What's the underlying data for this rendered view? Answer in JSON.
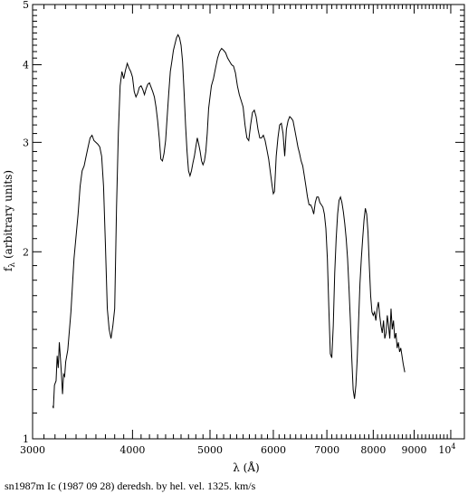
{
  "chart_data": {
    "type": "line",
    "x_scale": "log",
    "y_scale": "log",
    "xlim": [
      3000,
      10400
    ],
    "ylim": [
      1,
      5
    ],
    "xlabel": "λ (Å)",
    "ylabel": "f_λ (arbitrary units)",
    "ylabel_main": "f",
    "ylabel_sub": "λ",
    "ylabel_rest": " (arbitrary units)",
    "caption": "sn1987m Ic (1987 09 28) deredsh. by hel. vel.  1325. km/s",
    "x_ticks": [
      {
        "value": 3000,
        "label": "3000"
      },
      {
        "value": 4000,
        "label": "4000"
      },
      {
        "value": 5000,
        "label": "5000"
      },
      {
        "value": 6000,
        "label": "6000"
      },
      {
        "value": 7000,
        "label": "7000"
      },
      {
        "value": 8000,
        "label": "8000"
      },
      {
        "value": 9000,
        "label": "9000"
      }
    ],
    "x_tick_last": {
      "value": 10000,
      "base": "10",
      "exp": "4"
    },
    "x_minor_ticks": [
      3100,
      3200,
      3300,
      3400,
      3500,
      3600,
      3700,
      3800,
      3900,
      4100,
      4200,
      4300,
      4400,
      4500,
      4600,
      4700,
      4800,
      4900,
      5100,
      5200,
      5300,
      5400,
      5500,
      5600,
      5700,
      5800,
      5900,
      6100,
      6200,
      6300,
      6400,
      6500,
      6600,
      6700,
      6800,
      6900,
      7100,
      7200,
      7300,
      7400,
      7500,
      7600,
      7700,
      7800,
      7900,
      8100,
      8200,
      8300,
      8400,
      8500,
      8600,
      8700,
      8800,
      8900,
      9100,
      9200,
      9300,
      9400,
      9500,
      9600,
      9700,
      9800,
      9900
    ],
    "y_ticks": [
      {
        "value": 1,
        "label": "1"
      },
      {
        "value": 2,
        "label": "2"
      },
      {
        "value": 3,
        "label": "3"
      },
      {
        "value": 4,
        "label": "4"
      },
      {
        "value": 5,
        "label": "5"
      }
    ],
    "y_minor_ticks": [
      1.1,
      1.2,
      1.3,
      1.4,
      1.5,
      1.6,
      1.7,
      1.8,
      1.9,
      2.1,
      2.2,
      2.3,
      2.4,
      2.5,
      2.6,
      2.7,
      2.8,
      2.9,
      3.1,
      3.2,
      3.3,
      3.4,
      3.5,
      3.6,
      3.7,
      3.8,
      3.9,
      4.1,
      4.2,
      4.3,
      4.4,
      4.5,
      4.6,
      4.7,
      4.8,
      4.9
    ],
    "series": [
      {
        "points": [
          [
            3180,
            1.13
          ],
          [
            3185,
            1.12
          ],
          [
            3195,
            1.22
          ],
          [
            3210,
            1.24
          ],
          [
            3220,
            1.36
          ],
          [
            3230,
            1.3
          ],
          [
            3240,
            1.43
          ],
          [
            3250,
            1.35
          ],
          [
            3260,
            1.27
          ],
          [
            3270,
            1.18
          ],
          [
            3280,
            1.27
          ],
          [
            3290,
            1.26
          ],
          [
            3300,
            1.33
          ],
          [
            3320,
            1.39
          ],
          [
            3350,
            1.6
          ],
          [
            3380,
            1.95
          ],
          [
            3420,
            2.3
          ],
          [
            3440,
            2.55
          ],
          [
            3460,
            2.7
          ],
          [
            3480,
            2.75
          ],
          [
            3500,
            2.85
          ],
          [
            3520,
            2.95
          ],
          [
            3540,
            3.05
          ],
          [
            3560,
            3.08
          ],
          [
            3580,
            3.02
          ],
          [
            3600,
            3.0
          ],
          [
            3620,
            2.98
          ],
          [
            3640,
            2.95
          ],
          [
            3660,
            2.85
          ],
          [
            3680,
            2.55
          ],
          [
            3700,
            2.05
          ],
          [
            3720,
            1.62
          ],
          [
            3740,
            1.5
          ],
          [
            3760,
            1.45
          ],
          [
            3780,
            1.52
          ],
          [
            3800,
            1.62
          ],
          [
            3820,
            2.35
          ],
          [
            3840,
            3.1
          ],
          [
            3860,
            3.7
          ],
          [
            3880,
            3.9
          ],
          [
            3900,
            3.8
          ],
          [
            3920,
            3.92
          ],
          [
            3940,
            4.02
          ],
          [
            3960,
            3.95
          ],
          [
            3980,
            3.9
          ],
          [
            4000,
            3.82
          ],
          [
            4020,
            3.62
          ],
          [
            4040,
            3.55
          ],
          [
            4060,
            3.6
          ],
          [
            4080,
            3.68
          ],
          [
            4100,
            3.7
          ],
          [
            4120,
            3.65
          ],
          [
            4140,
            3.58
          ],
          [
            4160,
            3.66
          ],
          [
            4180,
            3.72
          ],
          [
            4200,
            3.74
          ],
          [
            4220,
            3.68
          ],
          [
            4240,
            3.62
          ],
          [
            4260,
            3.55
          ],
          [
            4280,
            3.42
          ],
          [
            4300,
            3.25
          ],
          [
            4320,
            3.05
          ],
          [
            4340,
            2.82
          ],
          [
            4360,
            2.8
          ],
          [
            4380,
            2.88
          ],
          [
            4400,
            3.02
          ],
          [
            4420,
            3.3
          ],
          [
            4440,
            3.6
          ],
          [
            4460,
            3.9
          ],
          [
            4480,
            4.05
          ],
          [
            4500,
            4.22
          ],
          [
            4520,
            4.32
          ],
          [
            4540,
            4.42
          ],
          [
            4560,
            4.47
          ],
          [
            4580,
            4.42
          ],
          [
            4600,
            4.3
          ],
          [
            4620,
            4.05
          ],
          [
            4640,
            3.62
          ],
          [
            4660,
            3.2
          ],
          [
            4680,
            2.9
          ],
          [
            4700,
            2.7
          ],
          [
            4720,
            2.65
          ],
          [
            4740,
            2.7
          ],
          [
            4760,
            2.78
          ],
          [
            4780,
            2.85
          ],
          [
            4800,
            2.95
          ],
          [
            4820,
            3.05
          ],
          [
            4840,
            2.98
          ],
          [
            4860,
            2.9
          ],
          [
            4880,
            2.8
          ],
          [
            4900,
            2.76
          ],
          [
            4920,
            2.8
          ],
          [
            4940,
            2.9
          ],
          [
            4960,
            3.1
          ],
          [
            4980,
            3.4
          ],
          [
            5000,
            3.55
          ],
          [
            5020,
            3.7
          ],
          [
            5050,
            3.8
          ],
          [
            5080,
            3.95
          ],
          [
            5110,
            4.1
          ],
          [
            5140,
            4.2
          ],
          [
            5170,
            4.25
          ],
          [
            5200,
            4.22
          ],
          [
            5230,
            4.18
          ],
          [
            5260,
            4.1
          ],
          [
            5290,
            4.05
          ],
          [
            5320,
            4.0
          ],
          [
            5350,
            3.98
          ],
          [
            5380,
            3.88
          ],
          [
            5410,
            3.7
          ],
          [
            5440,
            3.58
          ],
          [
            5470,
            3.5
          ],
          [
            5500,
            3.42
          ],
          [
            5530,
            3.2
          ],
          [
            5560,
            3.05
          ],
          [
            5590,
            3.02
          ],
          [
            5620,
            3.2
          ],
          [
            5650,
            3.35
          ],
          [
            5680,
            3.38
          ],
          [
            5710,
            3.3
          ],
          [
            5740,
            3.15
          ],
          [
            5770,
            3.05
          ],
          [
            5800,
            3.05
          ],
          [
            5830,
            3.08
          ],
          [
            5860,
            3.02
          ],
          [
            5890,
            2.92
          ],
          [
            5920,
            2.82
          ],
          [
            5950,
            2.68
          ],
          [
            5980,
            2.55
          ],
          [
            6000,
            2.48
          ],
          [
            6020,
            2.5
          ],
          [
            6050,
            2.85
          ],
          [
            6080,
            3.05
          ],
          [
            6110,
            3.2
          ],
          [
            6140,
            3.22
          ],
          [
            6170,
            3.1
          ],
          [
            6200,
            2.85
          ],
          [
            6230,
            3.15
          ],
          [
            6260,
            3.25
          ],
          [
            6290,
            3.3
          ],
          [
            6320,
            3.28
          ],
          [
            6350,
            3.25
          ],
          [
            6380,
            3.15
          ],
          [
            6410,
            3.05
          ],
          [
            6440,
            2.95
          ],
          [
            6470,
            2.88
          ],
          [
            6500,
            2.8
          ],
          [
            6530,
            2.75
          ],
          [
            6560,
            2.65
          ],
          [
            6590,
            2.55
          ],
          [
            6620,
            2.45
          ],
          [
            6650,
            2.38
          ],
          [
            6680,
            2.38
          ],
          [
            6710,
            2.35
          ],
          [
            6740,
            2.3
          ],
          [
            6770,
            2.4
          ],
          [
            6800,
            2.45
          ],
          [
            6830,
            2.45
          ],
          [
            6860,
            2.4
          ],
          [
            6890,
            2.38
          ],
          [
            6920,
            2.36
          ],
          [
            6950,
            2.3
          ],
          [
            6980,
            2.18
          ],
          [
            7010,
            1.95
          ],
          [
            7040,
            1.62
          ],
          [
            7070,
            1.37
          ],
          [
            7100,
            1.35
          ],
          [
            7130,
            1.52
          ],
          [
            7160,
            1.85
          ],
          [
            7190,
            2.1
          ],
          [
            7220,
            2.3
          ],
          [
            7250,
            2.42
          ],
          [
            7280,
            2.45
          ],
          [
            7310,
            2.4
          ],
          [
            7340,
            2.32
          ],
          [
            7370,
            2.22
          ],
          [
            7400,
            2.1
          ],
          [
            7430,
            1.95
          ],
          [
            7460,
            1.75
          ],
          [
            7490,
            1.55
          ],
          [
            7520,
            1.35
          ],
          [
            7550,
            1.2
          ],
          [
            7580,
            1.16
          ],
          [
            7610,
            1.22
          ],
          [
            7640,
            1.35
          ],
          [
            7670,
            1.55
          ],
          [
            7700,
            1.78
          ],
          [
            7730,
            1.95
          ],
          [
            7760,
            2.1
          ],
          [
            7790,
            2.25
          ],
          [
            7820,
            2.35
          ],
          [
            7850,
            2.3
          ],
          [
            7880,
            2.15
          ],
          [
            7910,
            1.9
          ],
          [
            7940,
            1.7
          ],
          [
            7970,
            1.6
          ],
          [
            8000,
            1.58
          ],
          [
            8030,
            1.6
          ],
          [
            8060,
            1.55
          ],
          [
            8090,
            1.62
          ],
          [
            8120,
            1.66
          ],
          [
            8150,
            1.58
          ],
          [
            8180,
            1.52
          ],
          [
            8210,
            1.48
          ],
          [
            8240,
            1.55
          ],
          [
            8270,
            1.45
          ],
          [
            8300,
            1.48
          ],
          [
            8330,
            1.58
          ],
          [
            8360,
            1.52
          ],
          [
            8390,
            1.45
          ],
          [
            8420,
            1.62
          ],
          [
            8450,
            1.5
          ],
          [
            8480,
            1.55
          ],
          [
            8510,
            1.45
          ],
          [
            8540,
            1.48
          ],
          [
            8570,
            1.4
          ],
          [
            8600,
            1.43
          ],
          [
            8630,
            1.38
          ],
          [
            8660,
            1.4
          ],
          [
            8690,
            1.36
          ],
          [
            8720,
            1.32
          ],
          [
            8760,
            1.28
          ]
        ]
      }
    ]
  }
}
